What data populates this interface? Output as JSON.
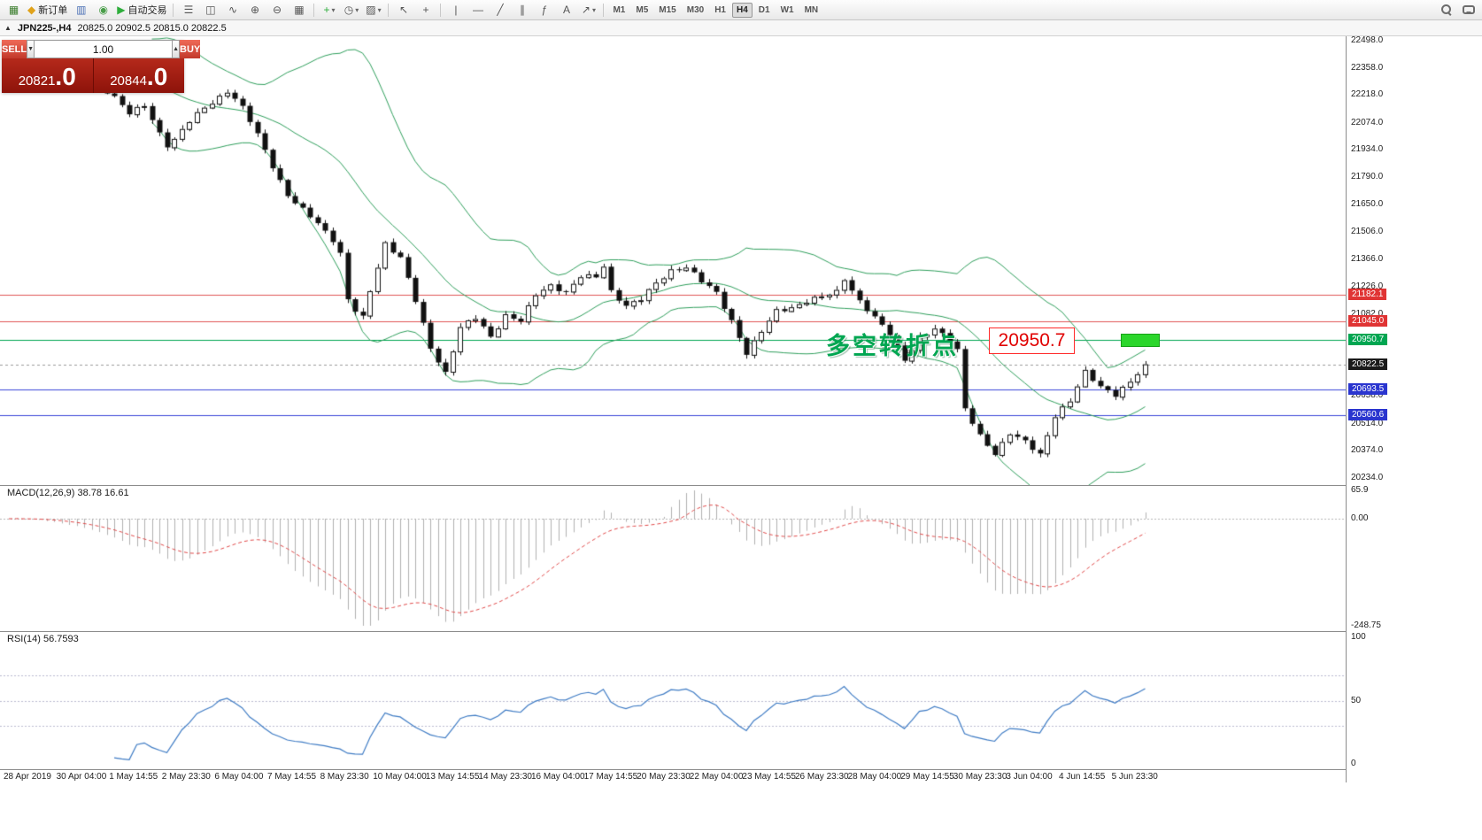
{
  "toolbar": {
    "groups": [
      {
        "items": [
          {
            "name": "new-chart-button",
            "glyph": "▦",
            "color": "#3a7d2c"
          },
          {
            "name": "new-order-button",
            "glyph": "◆",
            "color": "#e0a21a",
            "label": "新订单"
          },
          {
            "name": "market-watch-button",
            "glyph": "▥",
            "color": "#4a6fb5"
          },
          {
            "name": "strategy-navigator-button",
            "glyph": "◉",
            "color": "#4a9e4a"
          },
          {
            "name": "auto-trading-button",
            "glyph": "▶",
            "color": "#2eae3c",
            "label": "自动交易"
          }
        ]
      },
      {
        "items": [
          {
            "name": "bar-chart-button",
            "glyph": "☰"
          },
          {
            "name": "candlestick-chart-button",
            "glyph": "◫"
          },
          {
            "name": "line-chart-button",
            "glyph": "∿"
          },
          {
            "name": "zoom-in-button",
            "glyph": "⊕"
          },
          {
            "name": "zoom-out-button",
            "glyph": "⊖"
          },
          {
            "name": "tile-windows-button",
            "glyph": "▦"
          }
        ]
      },
      {
        "items": [
          {
            "name": "indicators-button",
            "glyph": "+",
            "color": "#2eae3c",
            "dropdown": true
          },
          {
            "name": "periods-button",
            "glyph": "◷",
            "dropdown": true
          },
          {
            "name": "templates-button",
            "glyph": "▨",
            "dropdown": true
          }
        ]
      },
      {
        "items": [
          {
            "name": "cursor-button",
            "glyph": "↖"
          },
          {
            "name": "crosshair-button",
            "glyph": "+"
          }
        ]
      },
      {
        "items": [
          {
            "name": "vertical-line-button",
            "glyph": "|"
          },
          {
            "name": "horizontal-line-button",
            "glyph": "—"
          },
          {
            "name": "trendline-button",
            "glyph": "╱"
          },
          {
            "name": "channel-button",
            "glyph": "∥"
          },
          {
            "name": "fibonacci-button",
            "glyph": "ƒ"
          },
          {
            "name": "text-label-button",
            "glyph": "A"
          },
          {
            "name": "arrows-button",
            "glyph": "↗",
            "dropdown": true
          }
        ]
      }
    ],
    "timeframes": [
      "M1",
      "M5",
      "M15",
      "M30",
      "H1",
      "H4",
      "D1",
      "W1",
      "MN"
    ],
    "active_timeframe": "H4",
    "right_items": [
      {
        "name": "search-button",
        "icon": "search"
      },
      {
        "name": "chat-button",
        "icon": "chat"
      }
    ]
  },
  "chart_header": {
    "collapse_glyph": "▲",
    "symbol": "JPN225-,H4",
    "ohlc": "20825.0 20902.5 20815.0 20822.5"
  },
  "trade_panel": {
    "sell_label": "SELL",
    "buy_label": "BUY",
    "volume": "1.00",
    "down_glyph": "▼",
    "up_glyph": "▲",
    "sell_price_main": "20821",
    "sell_price_frac": ".0",
    "buy_price_main": "20844",
    "buy_price_frac": ".0"
  },
  "price_axis": {
    "labels": [
      "22498.0",
      "22358.0",
      "22218.0",
      "22074.0",
      "21934.0",
      "21790.0",
      "21650.0",
      "21506.0",
      "21366.0",
      "21226.0",
      "21082.0",
      "20658.0",
      "20514.0",
      "20374.0",
      "20234.0"
    ],
    "tags": [
      {
        "value": "21182.1",
        "bg": "#e03434"
      },
      {
        "value": "21045.0",
        "bg": "#e03434"
      },
      {
        "value": "20950.7",
        "bg": "#00a651"
      },
      {
        "value": "20822.5",
        "bg": "#1a1a1a"
      },
      {
        "value": "20693.5",
        "bg": "#2a35cf"
      },
      {
        "value": "20560.6",
        "bg": "#2a35cf"
      }
    ]
  },
  "levels": [
    {
      "price": 21182.1,
      "color": "#e05555",
      "dash": false
    },
    {
      "price": 21045.0,
      "color": "#e05555",
      "dash": false
    },
    {
      "price": 20950.7,
      "color": "#00a651",
      "dash": false
    },
    {
      "price": 20822.5,
      "color": "#9a9a9a",
      "dash": true
    },
    {
      "price": 20693.5,
      "color": "#3a46d8",
      "dash": false
    },
    {
      "price": 20560.6,
      "color": "#3a46d8",
      "dash": false
    }
  ],
  "annotations": {
    "turning_point": "多空转折点",
    "price_label": "20950.7",
    "highlight_color": "#2bd62b"
  },
  "macd": {
    "label": "MACD(12,26,9) 38.78 16.61",
    "max": 65.9,
    "min": -248.75,
    "axis": [
      {
        "v": 65.9,
        "text": "65.9"
      },
      {
        "v": 0,
        "text": "0.00"
      },
      {
        "v": -248.75,
        "text": "-248.75"
      }
    ]
  },
  "rsi": {
    "label": "RSI(14) 56.7593",
    "levels": [
      70,
      50,
      30
    ],
    "axis": [
      {
        "v": 100,
        "text": "100"
      },
      {
        "v": 50,
        "text": "50"
      },
      {
        "v": 0,
        "text": "0"
      }
    ]
  },
  "time_axis": [
    "28 Apr 2019",
    "30 Apr 04:00",
    "1 May 14:55",
    "2 May 23:30",
    "6 May 04:00",
    "7 May 14:55",
    "8 May 23:30",
    "10 May 04:00",
    "13 May 14:55",
    "14 May 23:30",
    "16 May 04:00",
    "17 May 14:55",
    "20 May 23:30",
    "22 May 04:00",
    "23 May 14:55",
    "26 May 23:30",
    "28 May 04:00",
    "29 May 14:55",
    "30 May 23:30",
    "3 Jun 04:00",
    "4 Jun 14:55",
    "5 Jun 23:30"
  ],
  "chart_data": {
    "type": "candlestick",
    "symbol": "JPN225-",
    "timeframe": "H4",
    "bars": 152,
    "price_range": [
      20234.0,
      22498.0
    ],
    "close_anchors": [
      [
        0,
        22420
      ],
      [
        5,
        22390
      ],
      [
        10,
        22310
      ],
      [
        13,
        22240
      ],
      [
        14,
        22210
      ],
      [
        16,
        22120
      ],
      [
        18,
        22160
      ],
      [
        20,
        22020
      ],
      [
        21,
        21960
      ],
      [
        22,
        21990
      ],
      [
        24,
        22080
      ],
      [
        26,
        22150
      ],
      [
        28,
        22210
      ],
      [
        29,
        22240
      ],
      [
        30,
        22200
      ],
      [
        31,
        22150
      ],
      [
        33,
        22010
      ],
      [
        35,
        21850
      ],
      [
        37,
        21700
      ],
      [
        39,
        21620
      ],
      [
        41,
        21550
      ],
      [
        43,
        21470
      ],
      [
        44,
        21400
      ],
      [
        45,
        21160
      ],
      [
        46,
        21100
      ],
      [
        47,
        21060
      ],
      [
        48,
        21200
      ],
      [
        50,
        21450
      ],
      [
        52,
        21380
      ],
      [
        54,
        21150
      ],
      [
        56,
        20900
      ],
      [
        58,
        20780
      ],
      [
        60,
        21020
      ],
      [
        62,
        21060
      ],
      [
        64,
        20960
      ],
      [
        66,
        21080
      ],
      [
        68,
        21050
      ],
      [
        70,
        21180
      ],
      [
        72,
        21230
      ],
      [
        74,
        21200
      ],
      [
        76,
        21280
      ],
      [
        78,
        21270
      ],
      [
        79,
        21330
      ],
      [
        80,
        21200
      ],
      [
        82,
        21130
      ],
      [
        84,
        21160
      ],
      [
        86,
        21240
      ],
      [
        88,
        21310
      ],
      [
        90,
        21330
      ],
      [
        92,
        21250
      ],
      [
        94,
        21190
      ],
      [
        96,
        21050
      ],
      [
        98,
        20880
      ],
      [
        100,
        20990
      ],
      [
        102,
        21100
      ],
      [
        104,
        21120
      ],
      [
        106,
        21150
      ],
      [
        108,
        21170
      ],
      [
        110,
        21200
      ],
      [
        111,
        21270
      ],
      [
        113,
        21150
      ],
      [
        115,
        21060
      ],
      [
        117,
        20980
      ],
      [
        119,
        20850
      ],
      [
        121,
        20960
      ],
      [
        123,
        21000
      ],
      [
        125,
        20950
      ],
      [
        126,
        20900
      ],
      [
        127,
        20600
      ],
      [
        129,
        20450
      ],
      [
        131,
        20350
      ],
      [
        133,
        20470
      ],
      [
        135,
        20430
      ],
      [
        137,
        20350
      ],
      [
        139,
        20550
      ],
      [
        141,
        20640
      ],
      [
        143,
        20790
      ],
      [
        145,
        20700
      ],
      [
        147,
        20660
      ],
      [
        149,
        20740
      ],
      [
        151,
        20822.5
      ]
    ],
    "bollinger": {
      "period": 20,
      "deviation": 2
    },
    "indicators": [
      {
        "name": "MACD",
        "params": [
          12,
          26,
          9
        ],
        "values": [
          38.78,
          16.61
        ]
      },
      {
        "name": "RSI",
        "params": [
          14
        ],
        "value": 56.7593
      }
    ],
    "horizontal_levels": [
      21182.1,
      21045.0,
      20950.7,
      20693.5,
      20560.6
    ],
    "current_price": 20822.5
  }
}
